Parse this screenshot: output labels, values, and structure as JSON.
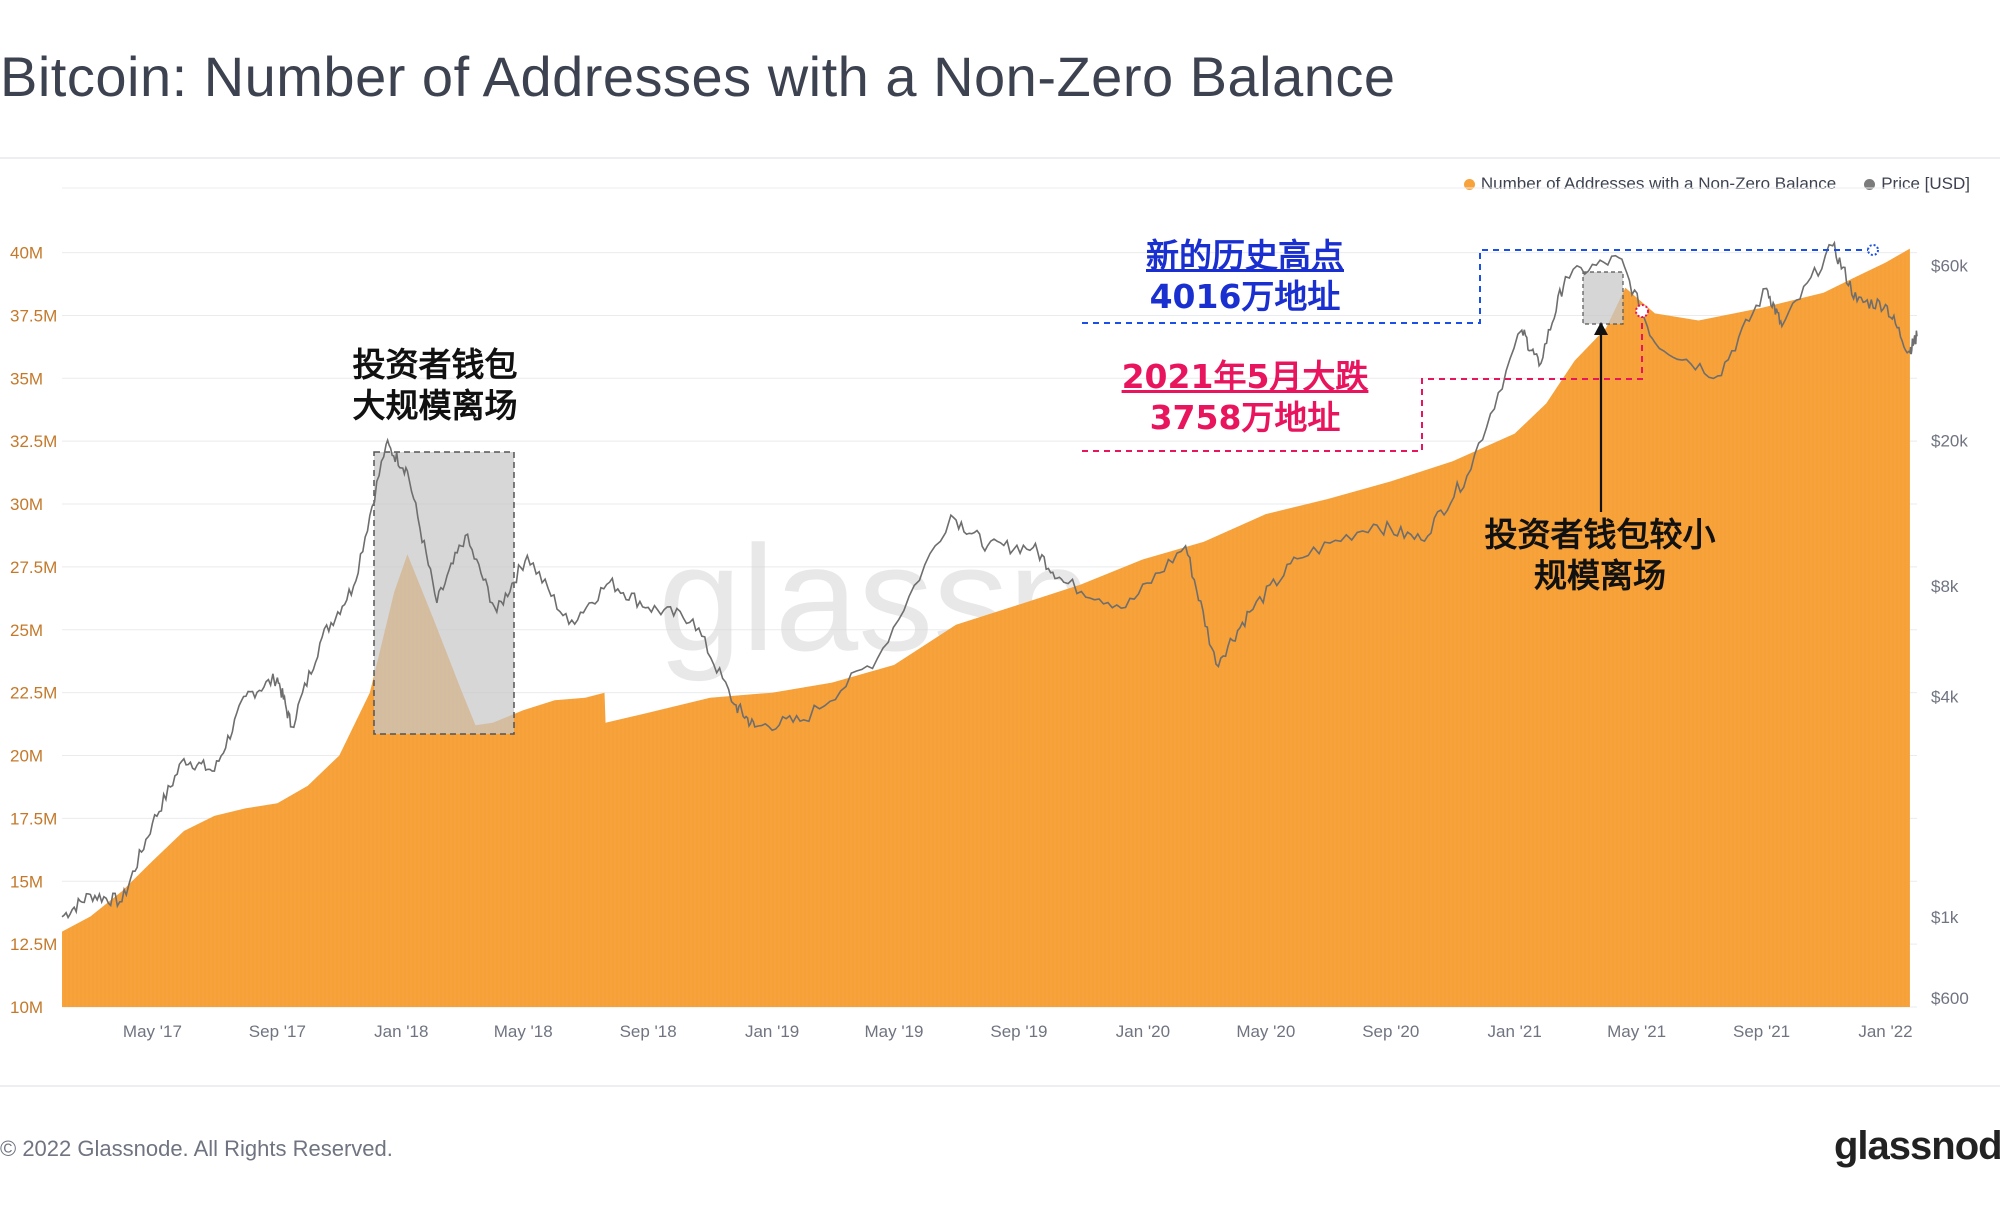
{
  "header": {
    "title": "Bitcoin: Number of Addresses with a Non-Zero Balance"
  },
  "footer": {
    "copyright": "© 2022 Glassnode. All Rights Reserved.",
    "logo": "glassnode"
  },
  "watermark": "glassnode",
  "legend": [
    {
      "label": "Number of Addresses with a Non-Zero Balance",
      "color": "#f7a23b"
    },
    {
      "label": "Price [USD]",
      "color": "#7b7b7b"
    }
  ],
  "annotations": {
    "ath_line1": "新的历史高点",
    "ath_line2": "4016万地址",
    "drop_line1": "2021年5月大跌",
    "drop_line2": "3758万地址",
    "exit2018_line1": "投资者钱包",
    "exit2018_line2": "大规模离场",
    "exit2021_line1": "投资者钱包较小",
    "exit2021_line2": "规模离场"
  },
  "chart_data": {
    "type": "area",
    "title": "Bitcoin: Number of Addresses with a Non-Zero Balance",
    "x_range": [
      "2017-02-01",
      "2022-02-01"
    ],
    "x_ticks": [
      "May '17",
      "Sep '17",
      "Jan '18",
      "May '18",
      "Sep '18",
      "Jan '19",
      "May '19",
      "Sep '19",
      "Jan '20",
      "May '20",
      "Sep '20",
      "Jan '21",
      "May '21",
      "Sep '21",
      "Jan '22"
    ],
    "y_left": {
      "ylim": [
        10,
        40.5
      ],
      "ticks": [
        10,
        12.5,
        15,
        17.5,
        20,
        22.5,
        25,
        27.5,
        30,
        32.5,
        35,
        37.5,
        40
      ],
      "tick_labels": [
        "10M",
        "12.5M",
        "15M",
        "17.5M",
        "20M",
        "22.5M",
        "25M",
        "27.5M",
        "30M",
        "32.5M",
        "35M",
        "37.5M",
        "40M"
      ]
    },
    "y_right": {
      "scale": "log",
      "tick_labels": [
        "$600",
        "$1k",
        "$4k",
        "$8k",
        "$20k",
        "$60k"
      ]
    },
    "series": [
      {
        "name": "Number of Addresses with a Non-Zero Balance",
        "color": "#f7a23b",
        "points": [
          [
            "2017-02-01",
            13.0
          ],
          [
            "2017-03-01",
            13.6
          ],
          [
            "2017-04-01",
            14.6
          ],
          [
            "2017-05-01",
            15.8
          ],
          [
            "2017-06-01",
            17.0
          ],
          [
            "2017-07-01",
            17.6
          ],
          [
            "2017-08-01",
            17.9
          ],
          [
            "2017-09-01",
            18.1
          ],
          [
            "2017-10-01",
            18.8
          ],
          [
            "2017-11-01",
            20.0
          ],
          [
            "2017-12-01",
            22.5
          ],
          [
            "2017-12-25",
            26.5
          ],
          [
            "2018-01-07",
            28.0
          ],
          [
            "2018-02-01",
            25.5
          ],
          [
            "2018-03-01",
            22.6
          ],
          [
            "2018-03-15",
            21.2
          ],
          [
            "2018-04-01",
            21.3
          ],
          [
            "2018-05-01",
            21.8
          ],
          [
            "2018-06-01",
            22.2
          ],
          [
            "2018-07-01",
            22.3
          ],
          [
            "2018-07-20",
            22.5
          ],
          [
            "2018-07-21",
            21.3
          ],
          [
            "2018-09-01",
            21.7
          ],
          [
            "2018-11-01",
            22.3
          ],
          [
            "2019-01-01",
            22.5
          ],
          [
            "2019-03-01",
            22.9
          ],
          [
            "2019-05-01",
            23.6
          ],
          [
            "2019-07-01",
            25.2
          ],
          [
            "2019-09-01",
            26.0
          ],
          [
            "2019-11-01",
            26.8
          ],
          [
            "2020-01-01",
            27.8
          ],
          [
            "2020-03-01",
            28.5
          ],
          [
            "2020-05-01",
            29.6
          ],
          [
            "2020-07-01",
            30.2
          ],
          [
            "2020-09-01",
            30.9
          ],
          [
            "2020-11-01",
            31.7
          ],
          [
            "2021-01-01",
            32.8
          ],
          [
            "2021-02-01",
            34.0
          ],
          [
            "2021-03-01",
            35.7
          ],
          [
            "2021-04-01",
            37.0
          ],
          [
            "2021-04-20",
            38.6
          ],
          [
            "2021-05-19",
            37.58
          ],
          [
            "2021-07-01",
            37.3
          ],
          [
            "2021-09-01",
            37.8
          ],
          [
            "2021-11-01",
            38.4
          ],
          [
            "2021-12-01",
            39.0
          ],
          [
            "2022-01-01",
            39.6
          ],
          [
            "2022-01-25",
            40.16
          ]
        ]
      },
      {
        "name": "Price [USD]",
        "color": "#7b7b7b",
        "points": [
          [
            "2017-02-01",
            1000
          ],
          [
            "2017-03-01",
            1150
          ],
          [
            "2017-04-01",
            1100
          ],
          [
            "2017-05-01",
            1800
          ],
          [
            "2017-06-01",
            2700
          ],
          [
            "2017-07-01",
            2500
          ],
          [
            "2017-08-01",
            4000
          ],
          [
            "2017-09-01",
            4500
          ],
          [
            "2017-09-15",
            3300
          ],
          [
            "2017-10-15",
            5800
          ],
          [
            "2017-11-15",
            8000
          ],
          [
            "2017-12-17",
            19500
          ],
          [
            "2018-01-07",
            16500
          ],
          [
            "2018-02-05",
            7200
          ],
          [
            "2018-03-05",
            11000
          ],
          [
            "2018-04-05",
            6800
          ],
          [
            "2018-05-05",
            9700
          ],
          [
            "2018-06-15",
            6300
          ],
          [
            "2018-07-25",
            8200
          ],
          [
            "2018-09-01",
            7000
          ],
          [
            "2018-10-15",
            6500
          ],
          [
            "2018-11-25",
            3800
          ],
          [
            "2018-12-15",
            3300
          ],
          [
            "2019-02-01",
            3450
          ],
          [
            "2019-04-15",
            5100
          ],
          [
            "2019-06-26",
            12500
          ],
          [
            "2019-08-01",
            10300
          ],
          [
            "2019-09-15",
            10200
          ],
          [
            "2019-10-15",
            8200
          ],
          [
            "2019-12-15",
            7000
          ],
          [
            "2020-02-12",
            10300
          ],
          [
            "2020-03-13",
            4900
          ],
          [
            "2020-04-15",
            6800
          ],
          [
            "2020-06-01",
            9500
          ],
          [
            "2020-08-15",
            11800
          ],
          [
            "2020-10-01",
            10700
          ],
          [
            "2020-11-15",
            16000
          ],
          [
            "2021-01-08",
            40000
          ],
          [
            "2021-01-25",
            32000
          ],
          [
            "2021-02-20",
            56000
          ],
          [
            "2021-04-14",
            63000
          ],
          [
            "2021-05-19",
            37000
          ],
          [
            "2021-07-20",
            30000
          ],
          [
            "2021-09-06",
            52000
          ],
          [
            "2021-09-21",
            41000
          ],
          [
            "2021-11-10",
            68000
          ],
          [
            "2021-12-04",
            48000
          ],
          [
            "2022-01-01",
            47000
          ],
          [
            "2022-01-24",
            35000
          ],
          [
            "2022-02-01",
            38500
          ]
        ]
      }
    ]
  }
}
